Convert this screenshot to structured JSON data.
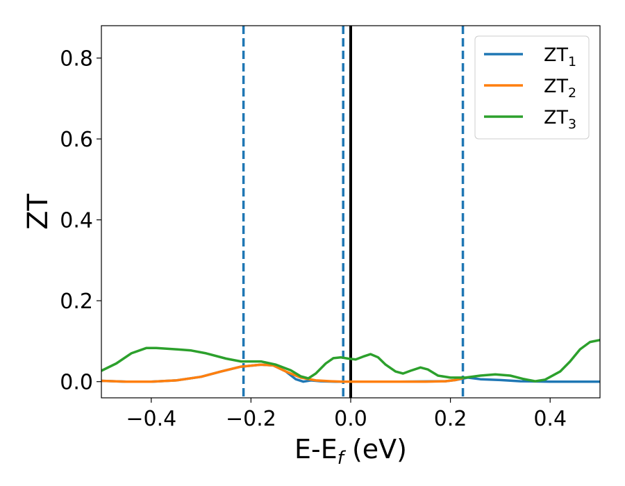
{
  "chart_data": {
    "type": "line",
    "xlabel": {
      "main": "E-E",
      "sub": "f",
      "unit": " (eV)"
    },
    "ylabel": "ZT",
    "xlim": [
      -0.5,
      0.5
    ],
    "ylim": [
      -0.04,
      0.88
    ],
    "xticks": [
      {
        "value": -0.4,
        "label": "−0.4"
      },
      {
        "value": -0.2,
        "label": "−0.2"
      },
      {
        "value": 0.0,
        "label": "0.0"
      },
      {
        "value": 0.2,
        "label": "0.2"
      },
      {
        "value": 0.4,
        "label": "0.4"
      }
    ],
    "yticks": [
      {
        "value": 0.0,
        "label": "0.0"
      },
      {
        "value": 0.2,
        "label": "0.2"
      },
      {
        "value": 0.4,
        "label": "0.4"
      },
      {
        "value": 0.6,
        "label": "0.6"
      },
      {
        "value": 0.8,
        "label": "0.8"
      }
    ],
    "grid": false,
    "legend_position": "top-right",
    "vlines": [
      {
        "x": -0.215,
        "style": "dashed",
        "color": "#1f77b4"
      },
      {
        "x": -0.015,
        "style": "dashed",
        "color": "#1f77b4"
      },
      {
        "x": 0.225,
        "style": "dashed",
        "color": "#1f77b4"
      },
      {
        "x": 0.0,
        "style": "solid",
        "color": "#000000"
      }
    ],
    "series": [
      {
        "name": "ZT",
        "sub": "1",
        "color": "#1f77b4",
        "points": [
          [
            -0.5,
            0.002
          ],
          [
            -0.45,
            0.0
          ],
          [
            -0.4,
            0.0
          ],
          [
            -0.35,
            0.003
          ],
          [
            -0.3,
            0.012
          ],
          [
            -0.26,
            0.025
          ],
          [
            -0.22,
            0.037
          ],
          [
            -0.18,
            0.042
          ],
          [
            -0.155,
            0.04
          ],
          [
            -0.13,
            0.025
          ],
          [
            -0.11,
            0.006
          ],
          [
            -0.095,
            0.0
          ],
          [
            -0.08,
            0.003
          ],
          [
            -0.06,
            0.001
          ],
          [
            -0.03,
            0.0
          ],
          [
            0.0,
            0.0
          ],
          [
            0.1,
            0.0
          ],
          [
            0.19,
            0.001
          ],
          [
            0.21,
            0.004
          ],
          [
            0.235,
            0.01
          ],
          [
            0.26,
            0.006
          ],
          [
            0.3,
            0.004
          ],
          [
            0.34,
            0.001
          ],
          [
            0.4,
            0.0
          ],
          [
            0.5,
            0.0
          ]
        ]
      },
      {
        "name": "ZT",
        "sub": "2",
        "color": "#ff7f0e",
        "points": [
          [
            -0.5,
            0.002
          ],
          [
            -0.45,
            0.0
          ],
          [
            -0.4,
            0.0
          ],
          [
            -0.35,
            0.003
          ],
          [
            -0.3,
            0.012
          ],
          [
            -0.26,
            0.025
          ],
          [
            -0.22,
            0.037
          ],
          [
            -0.18,
            0.042
          ],
          [
            -0.155,
            0.04
          ],
          [
            -0.13,
            0.025
          ],
          [
            -0.1,
            0.01
          ],
          [
            -0.07,
            0.003
          ],
          [
            -0.04,
            0.001
          ],
          [
            -0.015,
            0.0
          ],
          [
            0.05,
            0.0
          ],
          [
            0.15,
            0.0
          ],
          [
            0.19,
            0.001
          ],
          [
            0.21,
            0.004
          ],
          [
            0.225,
            0.009
          ]
        ]
      },
      {
        "name": "ZT",
        "sub": "3",
        "color": "#2ca02c",
        "points": [
          [
            -0.5,
            0.027
          ],
          [
            -0.47,
            0.045
          ],
          [
            -0.44,
            0.07
          ],
          [
            -0.41,
            0.083
          ],
          [
            -0.39,
            0.083
          ],
          [
            -0.35,
            0.08
          ],
          [
            -0.32,
            0.077
          ],
          [
            -0.29,
            0.07
          ],
          [
            -0.25,
            0.057
          ],
          [
            -0.22,
            0.05
          ],
          [
            -0.18,
            0.05
          ],
          [
            -0.15,
            0.042
          ],
          [
            -0.12,
            0.028
          ],
          [
            -0.1,
            0.013
          ],
          [
            -0.085,
            0.008
          ],
          [
            -0.07,
            0.02
          ],
          [
            -0.05,
            0.045
          ],
          [
            -0.035,
            0.058
          ],
          [
            -0.02,
            0.06
          ],
          [
            -0.005,
            0.057
          ],
          [
            0.01,
            0.055
          ],
          [
            0.025,
            0.062
          ],
          [
            0.04,
            0.068
          ],
          [
            0.055,
            0.06
          ],
          [
            0.07,
            0.042
          ],
          [
            0.09,
            0.025
          ],
          [
            0.105,
            0.02
          ],
          [
            0.12,
            0.027
          ],
          [
            0.14,
            0.035
          ],
          [
            0.155,
            0.03
          ],
          [
            0.175,
            0.015
          ],
          [
            0.2,
            0.01
          ],
          [
            0.23,
            0.01
          ],
          [
            0.26,
            0.015
          ],
          [
            0.29,
            0.018
          ],
          [
            0.32,
            0.015
          ],
          [
            0.345,
            0.007
          ],
          [
            0.37,
            0.001
          ],
          [
            0.39,
            0.005
          ],
          [
            0.42,
            0.025
          ],
          [
            0.44,
            0.05
          ],
          [
            0.46,
            0.08
          ],
          [
            0.48,
            0.098
          ],
          [
            0.5,
            0.103
          ]
        ]
      }
    ]
  }
}
